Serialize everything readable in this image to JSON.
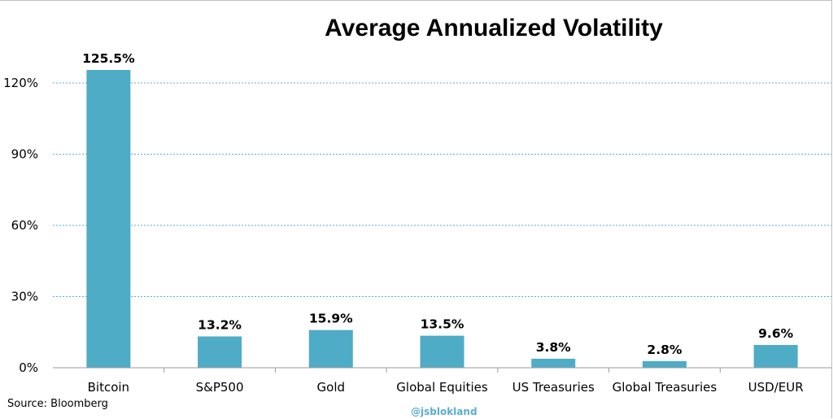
{
  "chart_data": {
    "type": "bar",
    "title": "Average Annualized Volatility",
    "xlabel": "",
    "ylabel": "",
    "categories": [
      "Bitcoin",
      "S&P500",
      "Gold",
      "Global Equities",
      "US Treasuries",
      "Global Treasuries",
      "USD/EUR"
    ],
    "values": [
      125.5,
      13.2,
      15.9,
      13.5,
      3.8,
      2.8,
      9.6
    ],
    "data_labels": [
      "125.5%",
      "13.2%",
      "15.9%",
      "13.5%",
      "3.8%",
      "2.8%",
      "9.6%"
    ],
    "y_ticks": [
      0,
      30,
      60,
      90,
      120
    ],
    "y_tick_labels": [
      "0%",
      "30%",
      "60%",
      "90%",
      "120%"
    ],
    "ylim": [
      0,
      120
    ],
    "grid": "horizontal dashed",
    "legend": "none",
    "bar_color": "#4eacc6",
    "grid_color": "#5aaed0"
  },
  "footer": {
    "source": "Source: Bloomberg",
    "credit": "@jsblokland"
  }
}
